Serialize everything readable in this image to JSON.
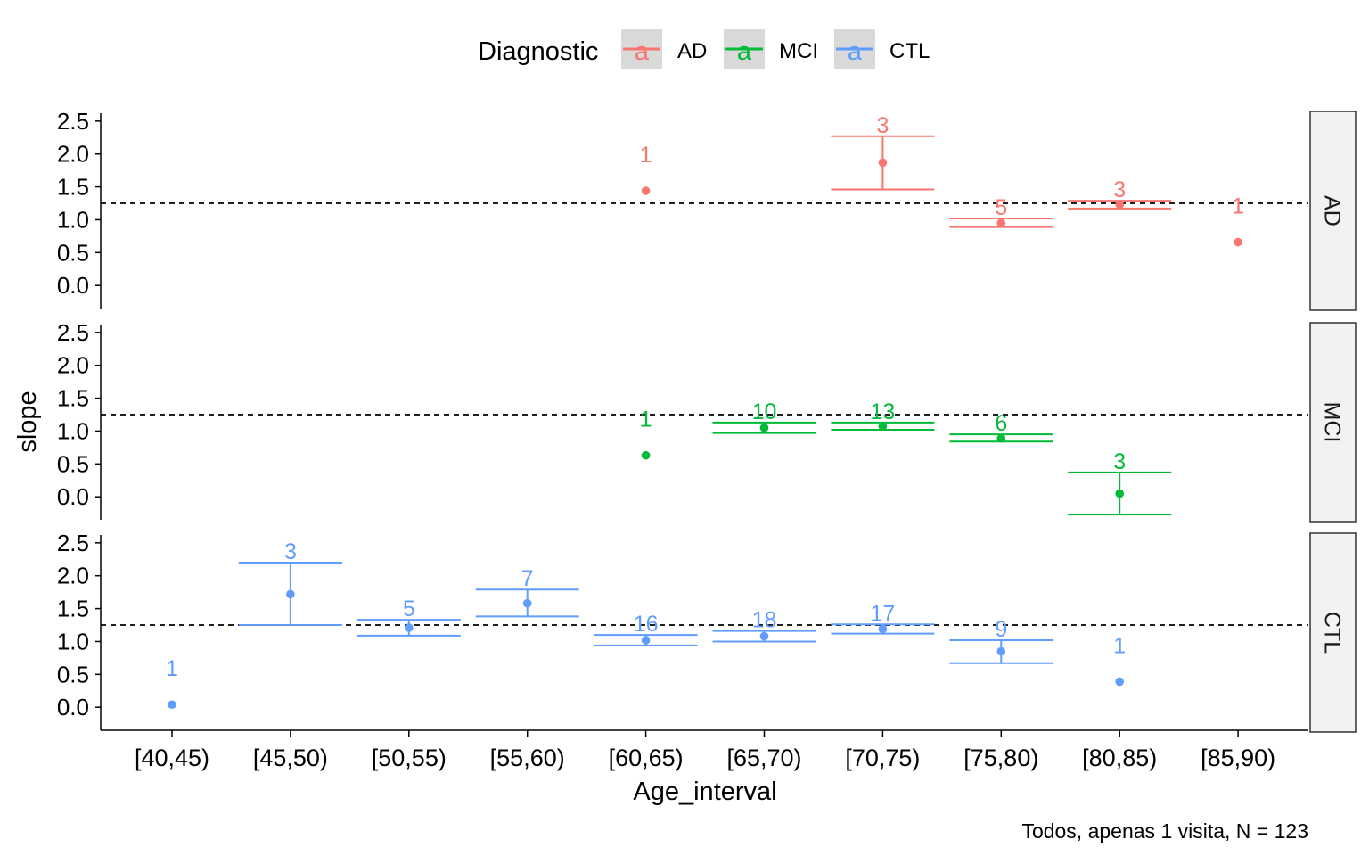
{
  "chart_data": {
    "type": "scatter",
    "xlabel": "Age_interval",
    "ylabel": "slope",
    "caption": "Todos, apenas 1 visita, N =  123",
    "categories": [
      "[40,45)",
      "[45,50)",
      "[50,55)",
      "[55,60)",
      "[60,65)",
      "[65,70)",
      "[70,75)",
      "[75,80)",
      "[80,85)",
      "[85,90)"
    ],
    "ylim": [
      -0.35,
      2.62
    ],
    "yticks": [
      "0.0",
      "0.5",
      "1.0",
      "1.5",
      "2.0",
      "2.5"
    ],
    "reference_line": 1.25,
    "legend": {
      "title": "Diagnostic",
      "position": "top",
      "key_glyph": "a",
      "items": [
        {
          "name": "AD",
          "color": "#F8766D"
        },
        {
          "name": "MCI",
          "color": "#00BA38"
        },
        {
          "name": "CTL",
          "color": "#619CFF"
        }
      ]
    },
    "panels": [
      {
        "strip": "AD",
        "color": "#F8766D",
        "points": [
          {
            "x": "[60,65)",
            "y": 1.44,
            "n": "1"
          },
          {
            "x": "[70,75)",
            "y": 1.87,
            "lo": 1.46,
            "hi": 2.27,
            "n": "3"
          },
          {
            "x": "[75,80)",
            "y": 0.95,
            "lo": 0.89,
            "hi": 1.02,
            "n": "5"
          },
          {
            "x": "[80,85)",
            "y": 1.23,
            "lo": 1.17,
            "hi": 1.29,
            "n": "3"
          },
          {
            "x": "[85,90)",
            "y": 0.66,
            "n": "1"
          }
        ]
      },
      {
        "strip": "MCI",
        "color": "#00BA38",
        "points": [
          {
            "x": "[60,65)",
            "y": 0.63,
            "n": "1"
          },
          {
            "x": "[65,70)",
            "y": 1.05,
            "lo": 0.97,
            "hi": 1.13,
            "n": "10"
          },
          {
            "x": "[70,75)",
            "y": 1.07,
            "lo": 1.02,
            "hi": 1.13,
            "n": "13"
          },
          {
            "x": "[75,80)",
            "y": 0.89,
            "lo": 0.84,
            "hi": 0.95,
            "n": "6"
          },
          {
            "x": "[80,85)",
            "y": 0.05,
            "lo": -0.27,
            "hi": 0.37,
            "n": "3"
          }
        ]
      },
      {
        "strip": "CTL",
        "color": "#619CFF",
        "points": [
          {
            "x": "[40,45)",
            "y": 0.04,
            "n": "1"
          },
          {
            "x": "[45,50)",
            "y": 1.72,
            "lo": 1.25,
            "hi": 2.2,
            "n": "3"
          },
          {
            "x": "[50,55)",
            "y": 1.21,
            "lo": 1.09,
            "hi": 1.33,
            "n": "5"
          },
          {
            "x": "[55,60)",
            "y": 1.58,
            "lo": 1.38,
            "hi": 1.79,
            "n": "7"
          },
          {
            "x": "[60,65)",
            "y": 1.02,
            "lo": 0.94,
            "hi": 1.1,
            "n": "16"
          },
          {
            "x": "[65,70)",
            "y": 1.08,
            "lo": 1.0,
            "hi": 1.16,
            "n": "18"
          },
          {
            "x": "[70,75)",
            "y": 1.19,
            "lo": 1.12,
            "hi": 1.26,
            "n": "17"
          },
          {
            "x": "[75,80)",
            "y": 0.85,
            "lo": 0.67,
            "hi": 1.02,
            "n": "9"
          },
          {
            "x": "[80,85)",
            "y": 0.39,
            "n": "1"
          }
        ]
      }
    ]
  }
}
